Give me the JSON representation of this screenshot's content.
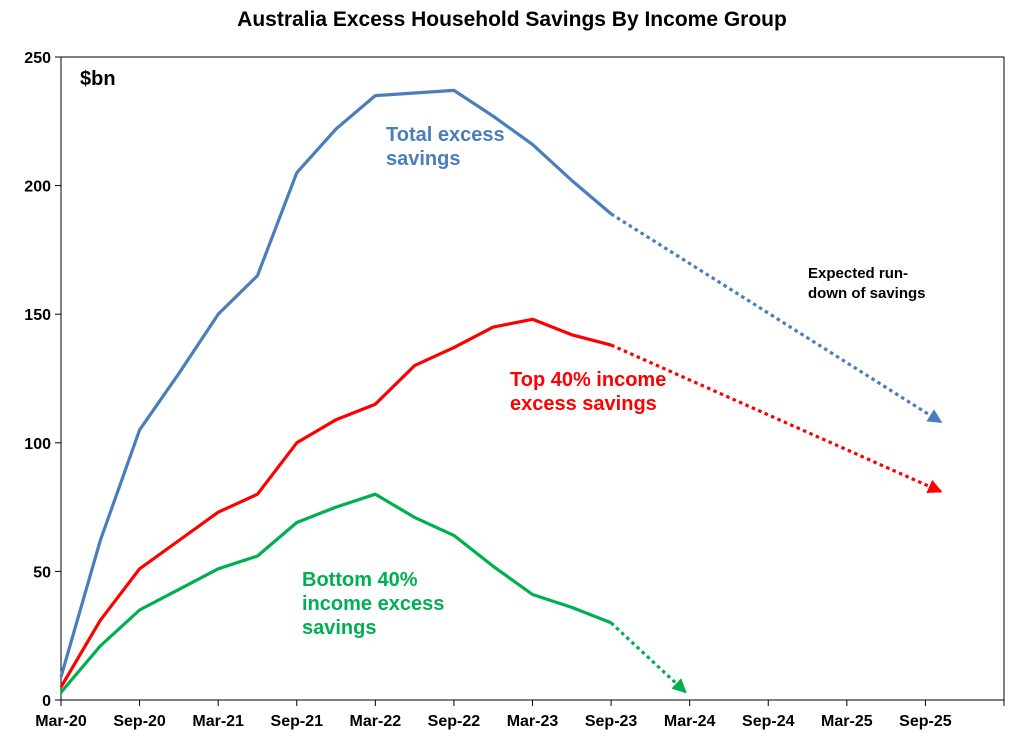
{
  "chart_data": {
    "type": "line",
    "title": "Australia Excess Household Savings By Income Group",
    "unit_label": "$bn",
    "xlabel": "",
    "ylabel": "",
    "x_categories": [
      "Mar-20",
      "Sep-20",
      "Mar-21",
      "Sep-21",
      "Mar-22",
      "Sep-22",
      "Mar-23",
      "Sep-23",
      "Mar-24",
      "Sep-24",
      "Mar-25",
      "Sep-25"
    ],
    "ylim": [
      0,
      250
    ],
    "yticks": [
      0,
      50,
      100,
      150,
      200,
      250
    ],
    "grid": false,
    "series": [
      {
        "name": "Total excess savings",
        "color": "#4a7ebb",
        "actual": [
          [
            0,
            9
          ],
          [
            0.5,
            62
          ],
          [
            1,
            105
          ],
          [
            1.5,
            127
          ],
          [
            2,
            150
          ],
          [
            2.5,
            165
          ],
          [
            3,
            205
          ],
          [
            3.5,
            222
          ],
          [
            4,
            235
          ],
          [
            4.5,
            236
          ],
          [
            5,
            237
          ],
          [
            5.5,
            227
          ],
          [
            6,
            216
          ],
          [
            6.5,
            202
          ],
          [
            7,
            189
          ]
        ],
        "expected": [
          [
            7,
            189
          ],
          [
            11.2,
            108
          ]
        ]
      },
      {
        "name": "Top 40% income excess savings",
        "color": "#ff0000",
        "actual": [
          [
            0,
            5
          ],
          [
            0.5,
            31
          ],
          [
            1,
            51
          ],
          [
            1.5,
            62
          ],
          [
            2,
            73
          ],
          [
            2.5,
            80
          ],
          [
            3,
            100
          ],
          [
            3.5,
            109
          ],
          [
            4,
            115
          ],
          [
            4.5,
            130
          ],
          [
            5,
            137
          ],
          [
            5.5,
            145
          ],
          [
            6,
            148
          ],
          [
            6.5,
            142
          ],
          [
            7,
            138
          ]
        ],
        "expected": [
          [
            7,
            138
          ],
          [
            11.2,
            81
          ]
        ]
      },
      {
        "name": "Bottom 40% income excess savings",
        "color": "#00b050",
        "actual": [
          [
            0,
            3
          ],
          [
            0.5,
            21
          ],
          [
            1,
            35
          ],
          [
            1.5,
            43
          ],
          [
            2,
            51
          ],
          [
            2.5,
            56
          ],
          [
            3,
            69
          ],
          [
            3.5,
            75
          ],
          [
            4,
            80
          ],
          [
            4.5,
            71
          ],
          [
            5,
            64
          ],
          [
            5.5,
            52
          ],
          [
            6,
            41
          ],
          [
            6.5,
            36
          ],
          [
            7,
            30
          ]
        ],
        "expected": [
          [
            7,
            30
          ],
          [
            7.95,
            3
          ]
        ]
      }
    ],
    "annotations": {
      "total": [
        "Total excess",
        "savings"
      ],
      "top": [
        "Top 40% income",
        "excess savings"
      ],
      "bottom": [
        "Bottom 40%",
        "income excess",
        "savings"
      ],
      "expected": [
        "Expected run-",
        "down of savings"
      ]
    }
  }
}
